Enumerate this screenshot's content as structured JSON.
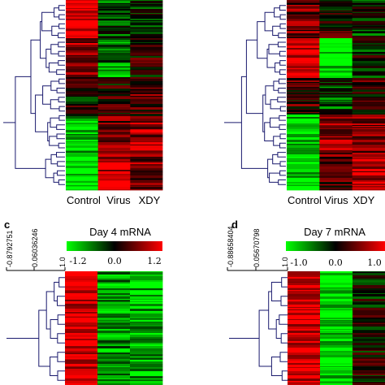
{
  "panels": [
    {
      "panel_label": "",
      "title": "",
      "columns": [
        "Control",
        "Virus",
        "XDY"
      ]
    },
    {
      "panel_label": "",
      "title": "",
      "columns": [
        "Control",
        "Virus",
        "XDY"
      ]
    },
    {
      "panel_label": "c",
      "title": "Day 4 mRNA",
      "scale_ticks": [
        "-1.2",
        "0.0",
        "1.2"
      ],
      "dendrogram_ticks": [
        "-0.8792751",
        "0.06036246",
        "1.0"
      ]
    },
    {
      "panel_label": "d",
      "title": "Day 7 mRNA",
      "scale_ticks": [
        "-1.0",
        "0.0",
        "1.0"
      ],
      "dendrogram_ticks": [
        "-0.88658404",
        "0.05670798",
        "1.0"
      ]
    }
  ],
  "colors": {
    "low": "#00ff00",
    "mid": "#000000",
    "high": "#ff0000",
    "dendrogram": "#1a1a6e"
  },
  "chart_data": [
    {
      "type": "heatmap",
      "title": "",
      "columns": [
        "Control",
        "Virus",
        "XDY"
      ],
      "color_scale": [
        "green",
        "black",
        "red"
      ],
      "row_profiles": [
        {
          "rows": "top",
          "Control": 1.0,
          "Virus": -0.3,
          "XDY": -0.1
        },
        {
          "rows": "upper-middle",
          "Control": 0.6,
          "Virus": -0.5,
          "XDY": 0.1
        },
        {
          "rows": "middle",
          "Control": 0.0,
          "Virus": 0.1,
          "XDY": 0.3
        },
        {
          "rows": "lower-middle",
          "Control": -0.8,
          "Virus": 0.4,
          "XDY": 0.6
        },
        {
          "rows": "bottom",
          "Control": -1.0,
          "Virus": 0.8,
          "XDY": 0.5
        }
      ]
    },
    {
      "type": "heatmap",
      "title": "",
      "columns": [
        "Control",
        "Virus",
        "XDY"
      ],
      "color_scale": [
        "green",
        "black",
        "red"
      ],
      "row_profiles": [
        {
          "rows": "top",
          "Control": 0.4,
          "Virus": 0.1,
          "XDY": -0.2
        },
        {
          "rows": "upper-middle",
          "Control": 0.9,
          "Virus": -0.9,
          "XDY": -0.1
        },
        {
          "rows": "middle",
          "Control": 0.2,
          "Virus": -0.3,
          "XDY": 0.2
        },
        {
          "rows": "lower-middle",
          "Control": -0.8,
          "Virus": 0.6,
          "XDY": 0.4
        },
        {
          "rows": "bottom",
          "Control": -0.9,
          "Virus": 0.3,
          "XDY": 0.7
        }
      ]
    },
    {
      "type": "heatmap",
      "title": "Day 4 mRNA",
      "columns": [],
      "value_range": [
        -1.2,
        1.2
      ],
      "scale_ticks": [
        -1.2,
        0.0,
        1.2
      ],
      "color_scale": [
        "green",
        "black",
        "red"
      ],
      "row_profiles": [
        {
          "rows": "visible",
          "col1": 0.9,
          "col2": -0.6,
          "col3": -0.7
        }
      ]
    },
    {
      "type": "heatmap",
      "title": "Day 7 mRNA",
      "columns": [],
      "value_range": [
        -1.0,
        1.0
      ],
      "scale_ticks": [
        -1.0,
        0.0,
        1.0
      ],
      "color_scale": [
        "green",
        "black",
        "red"
      ],
      "row_profiles": [
        {
          "rows": "visible",
          "col1": 0.9,
          "col2": -0.9,
          "col3": 0.0
        }
      ]
    }
  ]
}
